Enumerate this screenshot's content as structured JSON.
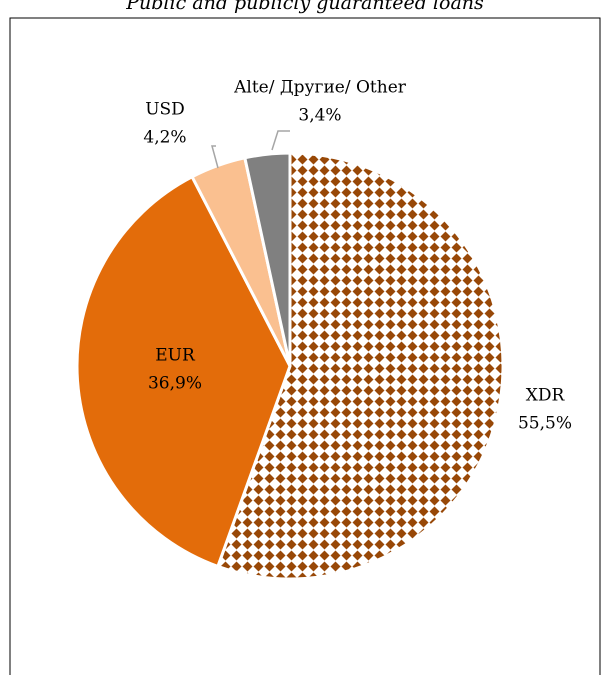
{
  "chart_data": {
    "type": "pie",
    "title": "Public and publicly guaranteed loans",
    "categories": [
      "XDR",
      "EUR",
      "USD",
      "Alte/ Другие/ Other"
    ],
    "values": [
      55.5,
      36.9,
      4.2,
      3.4
    ],
    "value_labels": [
      "55,5%",
      "36,9%",
      "4,2%",
      "3,4%"
    ],
    "colors": [
      "#984807",
      "#E36C0A",
      "#FAC090",
      "#808080"
    ],
    "patterns": [
      "diamonds",
      "solid",
      "solid",
      "solid"
    ]
  }
}
